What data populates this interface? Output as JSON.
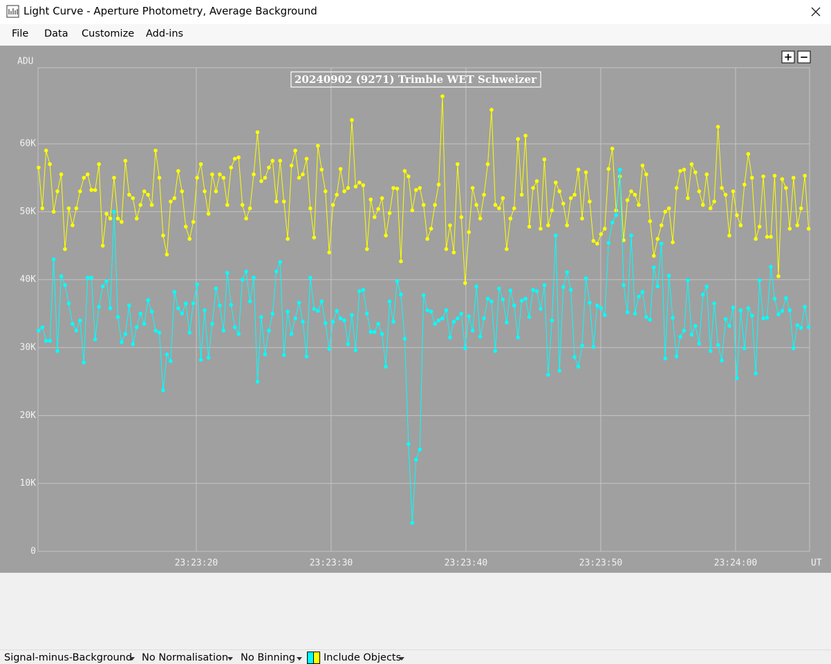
{
  "window": {
    "title": "Light Curve - Aperture Photometry, Average Background"
  },
  "menu": [
    "File",
    "Data",
    "Customize",
    "Add-ins"
  ],
  "zoom_buttons": [
    "+",
    "−"
  ],
  "status_bar": [
    "Signal-minus-Background",
    "No Normalisation",
    "No Binning",
    "Include Objects"
  ],
  "chart_data": {
    "type": "line",
    "title": "20240902 (9271) Trimble WET Schweizer",
    "y_label": "ADU",
    "x_label": "UT",
    "grid": true,
    "xlim": [
      84188.26,
      84245.49
    ],
    "xticks": [
      {
        "value": 84200,
        "label": "23:23:20"
      },
      {
        "value": 84210,
        "label": "23:23:30"
      },
      {
        "value": 84220,
        "label": "23:23:40"
      },
      {
        "value": 84230,
        "label": "23:23:50"
      },
      {
        "value": 84240,
        "label": "23:24:00"
      }
    ],
    "ylim": [
      0,
      71200
    ],
    "yticks": [
      0,
      {
        "value": 10000,
        "label": "10K"
      },
      {
        "value": 20000,
        "label": "20K"
      },
      {
        "value": 30000,
        "label": "30K"
      },
      {
        "value": 40000,
        "label": "40K"
      },
      {
        "value": 50000,
        "label": "50K"
      },
      {
        "value": 60000,
        "label": "60K"
      }
    ],
    "x": [
      84188.3,
      84188.58,
      84188.86,
      84189.14,
      84189.42,
      84189.7,
      84189.98,
      84190.26,
      84190.54,
      84190.82,
      84191.1,
      84191.38,
      84191.66,
      84191.94,
      84192.22,
      84192.5,
      84192.78,
      84193.06,
      84193.34,
      84193.62,
      84193.9,
      84194.18,
      84194.46,
      84194.74,
      84195.02,
      84195.3,
      84195.58,
      84195.86,
      84196.14,
      84196.42,
      84196.7,
      84196.98,
      84197.26,
      84197.54,
      84197.82,
      84198.1,
      84198.38,
      84198.66,
      84198.94,
      84199.22,
      84199.5,
      84199.78,
      84200.06,
      84200.34,
      84200.62,
      84200.9,
      84201.18,
      84201.46,
      84201.74,
      84202.02,
      84202.3,
      84202.58,
      84202.86,
      84203.14,
      84203.42,
      84203.7,
      84203.98,
      84204.26,
      84204.54,
      84204.82,
      84205.1,
      84205.38,
      84205.66,
      84205.94,
      84206.22,
      84206.5,
      84206.78,
      84207.06,
      84207.34,
      84207.62,
      84207.9,
      84208.18,
      84208.46,
      84208.74,
      84209.02,
      84209.3,
      84209.58,
      84209.86,
      84210.14,
      84210.42,
      84210.7,
      84210.98,
      84211.26,
      84211.54,
      84211.82,
      84212.1,
      84212.38,
      84212.66,
      84212.94,
      84213.22,
      84213.5,
      84213.78,
      84214.06,
      84214.34,
      84214.62,
      84214.9,
      84215.18,
      84215.46,
      84215.74,
      84216.02,
      84216.3,
      84216.58,
      84216.86,
      84217.14,
      84217.42,
      84217.7,
      84217.98,
      84218.26,
      84218.54,
      84218.82,
      84219.1,
      84219.38,
      84219.66,
      84219.94,
      84220.22,
      84220.5,
      84220.78,
      84221.06,
      84221.34,
      84221.62,
      84221.9,
      84222.18,
      84222.46,
      84222.74,
      84223.02,
      84223.3,
      84223.58,
      84223.86,
      84224.14,
      84224.42,
      84224.7,
      84224.98,
      84225.26,
      84225.54,
      84225.82,
      84226.1,
      84226.38,
      84226.66,
      84226.94,
      84227.22,
      84227.5,
      84227.78,
      84228.06,
      84228.34,
      84228.62,
      84228.9,
      84229.18,
      84229.46,
      84229.74,
      84230.02,
      84230.3,
      84230.58,
      84230.86,
      84231.14,
      84231.42,
      84231.7,
      84231.98,
      84232.26,
      84232.54,
      84232.82,
      84233.1,
      84233.38,
      84233.66,
      84233.94,
      84234.22,
      84234.5,
      84234.78,
      84235.06,
      84235.34,
      84235.62,
      84235.9,
      84236.18,
      84236.46,
      84236.74,
      84237.02,
      84237.3,
      84237.58,
      84237.86,
      84238.14,
      84238.42,
      84238.7,
      84238.98,
      84239.26,
      84239.54,
      84239.82,
      84240.1,
      84240.38,
      84240.66,
      84240.94,
      84241.22,
      84241.5,
      84241.78,
      84242.06,
      84242.34,
      84242.62,
      84242.9,
      84243.18,
      84243.46,
      84243.74,
      84244.02,
      84244.3,
      84244.58,
      84244.86,
      84245.14,
      84245.42
    ],
    "series": [
      {
        "color": "#ffff00",
        "values": [
          56500,
          50500,
          59000,
          57000,
          50000,
          53000,
          55500,
          44500,
          50500,
          48000,
          50500,
          53000,
          55000,
          55500,
          53200,
          53200,
          57000,
          45000,
          49700,
          49000,
          55000,
          49000,
          48500,
          57500,
          52500,
          52000,
          49000,
          51000,
          53000,
          52500,
          51000,
          59000,
          55000,
          46500,
          43700,
          51500,
          52000,
          56000,
          53000,
          47800,
          46000,
          48500,
          55000,
          57000,
          53000,
          49700,
          55500,
          53000,
          55500,
          55000,
          51000,
          56500,
          57800,
          58000,
          51000,
          49000,
          50500,
          55500,
          61700,
          54500,
          55000,
          56500,
          57500,
          51500,
          57500,
          51500,
          46000,
          56800,
          59000,
          55000,
          55500,
          57800,
          50500,
          46200,
          59700,
          56200,
          53000,
          44000,
          51000,
          52500,
          56300,
          53000,
          53500,
          63500,
          53700,
          54300,
          53900,
          44500,
          51800,
          49200,
          50400,
          52000,
          46500,
          49800,
          53500,
          53400,
          42700,
          56000,
          55200,
          50200,
          53200,
          53500,
          51000,
          46000,
          47500,
          51000,
          54000,
          67000,
          44500,
          48000,
          44000,
          57000,
          49200,
          39500,
          47000,
          53500,
          51000,
          49000,
          52500,
          57000,
          65000,
          51000,
          50500,
          52000,
          44500,
          49000,
          50500,
          60700,
          52500,
          61200,
          47800,
          53500,
          54500,
          47500,
          57700,
          48000,
          50200,
          54300,
          53000,
          51200,
          48000,
          52000,
          52500,
          56200,
          49000,
          55800,
          51500,
          45700,
          45300,
          46700,
          47500,
          56300,
          59300,
          50200,
          55200,
          45800,
          51700,
          53000,
          52500,
          51000,
          56800,
          55500,
          48600,
          43500,
          46000,
          48000,
          50000,
          50500,
          45500,
          53500,
          56000,
          56200,
          52000,
          57000,
          55800,
          53000,
          51000,
          55500,
          50500,
          51500,
          62500,
          53500,
          52500,
          46500,
          53000,
          49500,
          48000,
          54000,
          58500,
          55000,
          46000,
          47800,
          55200,
          46300,
          46300,
          55300,
          40500,
          54800,
          53500,
          47500,
          55000,
          48000,
          50500,
          55300,
          47500
        ]
      },
      {
        "color": "#00ffff",
        "values": [
          32500,
          33000,
          31000,
          31000,
          43000,
          29500,
          40500,
          39200,
          36500,
          33500,
          32500,
          34000,
          27800,
          40300,
          40300,
          31200,
          36000,
          39000,
          39800,
          35800,
          50000,
          34500,
          30800,
          32000,
          36200,
          30500,
          33000,
          35000,
          33500,
          37000,
          35300,
          32500,
          32200,
          23700,
          29000,
          28000,
          38200,
          35800,
          35000,
          36500,
          32200,
          36500,
          39300,
          28200,
          35500,
          28500,
          33500,
          38700,
          36200,
          32500,
          41000,
          36300,
          33000,
          32000,
          40000,
          41200,
          36800,
          40300,
          25000,
          34500,
          29000,
          32500,
          35000,
          41200,
          42600,
          28900,
          35300,
          32000,
          34300,
          36600,
          33800,
          28700,
          40300,
          35700,
          35400,
          36800,
          33600,
          29800,
          33800,
          35400,
          34300,
          34000,
          30500,
          34800,
          29600,
          38300,
          38500,
          35000,
          32300,
          32300,
          33500,
          32000,
          27200,
          36800,
          33800,
          39800,
          37800,
          31300,
          15800,
          4200,
          13500,
          15000,
          37700,
          35500,
          35300,
          33500,
          34000,
          34300,
          35500,
          31500,
          33800,
          34300,
          35000,
          29900,
          34600,
          32500,
          39000,
          31600,
          34300,
          37200,
          36800,
          29500,
          38700,
          37100,
          33700,
          38400,
          36200,
          31500,
          36900,
          37200,
          34500,
          38500,
          38300,
          35700,
          39200,
          26000,
          34000,
          46500,
          26600,
          38900,
          41100,
          38500,
          28600,
          27200,
          30300,
          40200,
          36600,
          30100,
          36200,
          35800,
          34800,
          45400,
          48400,
          49500,
          56200,
          39200,
          35200,
          46500,
          35000,
          37500,
          38200,
          34500,
          34100,
          41800,
          39000,
          45300,
          28400,
          40600,
          34400,
          28700,
          31600,
          32500,
          39900,
          31900,
          33200,
          30600,
          37800,
          39000,
          29500,
          36500,
          30400,
          28100,
          34200,
          33200,
          35900,
          25500,
          35500,
          29900,
          35800,
          34700,
          26200,
          39900,
          34300,
          34400,
          41900,
          37200,
          34900,
          35400,
          37300,
          35500,
          29900,
          33300,
          32900,
          36000,
          33000
        ]
      }
    ]
  }
}
